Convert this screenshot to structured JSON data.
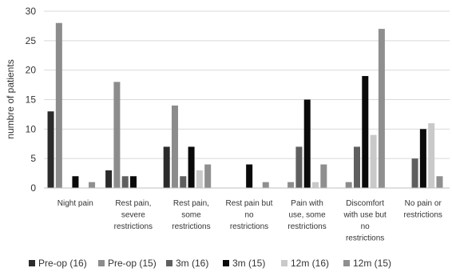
{
  "chart_data": {
    "type": "bar",
    "title": "",
    "xlabel": "",
    "ylabel": "numbre of patients",
    "ylim": [
      0,
      30
    ],
    "yticks": [
      0,
      5,
      10,
      15,
      20,
      25,
      30
    ],
    "grid": true,
    "legend_position": "bottom",
    "categories": [
      [
        "Night pain"
      ],
      [
        "Rest pain,",
        "severe",
        "restrictions"
      ],
      [
        "Rest pain,",
        "some",
        "restrictions"
      ],
      [
        "Rest pain but",
        "no",
        "restrictions"
      ],
      [
        "Pain with",
        "use, some",
        "restrictions"
      ],
      [
        "Discomfort",
        "with use but",
        "no",
        "restrictions"
      ],
      [
        "No pain or",
        "restrictions"
      ]
    ],
    "series": [
      {
        "name": "Pre-op (16)",
        "color": "#2b2b2b",
        "values": [
          13,
          3,
          7,
          0,
          0,
          0,
          0
        ]
      },
      {
        "name": "Pre-op (15)",
        "color": "#8c8c8c",
        "values": [
          28,
          18,
          14,
          0,
          1,
          1,
          0
        ]
      },
      {
        "name": "3m (16)",
        "color": "#5f5f5f",
        "values": [
          0,
          2,
          2,
          0,
          7,
          7,
          5
        ]
      },
      {
        "name": "3m (15)",
        "color": "#0a0a0a",
        "values": [
          2,
          2,
          7,
          4,
          15,
          19,
          10
        ]
      },
      {
        "name": "12m (16)",
        "color": "#c9c9c9",
        "values": [
          0,
          0,
          3,
          0,
          1,
          9,
          11
        ]
      },
      {
        "name": "12m (15)",
        "color": "#8f8f8f",
        "values": [
          1,
          0,
          4,
          1,
          4,
          27,
          2
        ]
      }
    ]
  }
}
